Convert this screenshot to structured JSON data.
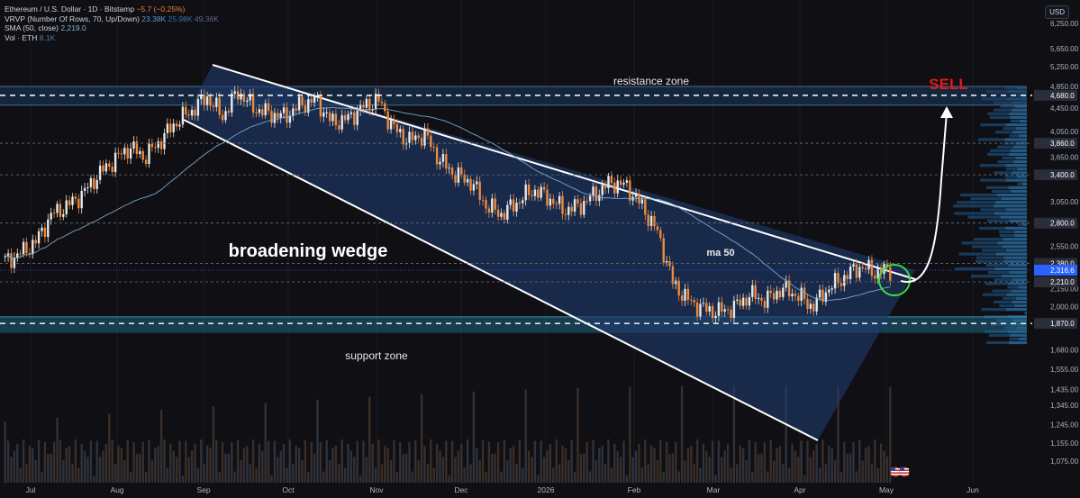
{
  "legend": {
    "symbol": "Ethereum / U.S. Dollar · 1D · Bitstamp",
    "change": "−5.7 (−0.25%)",
    "vrvp_label": "VRVP (Number Of Rows, 70, Up/Down)",
    "vrvp_v1": "23.38K",
    "vrvp_v2": "25.98K",
    "vrvp_v3": "49.36K",
    "sma_label": "SMA (50, close)",
    "sma_value": "2,219.0",
    "vol_label": "Vol · ETH",
    "vol_value": "8.1K"
  },
  "currency_button": "USD",
  "colors": {
    "background": "#0f0f14",
    "up_candle": "#e8e8e8",
    "down_candle": "#f08a3c",
    "sma": "#7fb2d6",
    "wedge_fill": "#1e3a6b",
    "zone_fill": "#1a3a5c",
    "sell": "#e21b1b",
    "circle": "#3ddc3d",
    "price_tag": "#2962ff"
  },
  "chart_data": {
    "type": "candlestick",
    "title": "Ethereum / U.S. Dollar · 1D · Bitstamp",
    "x_ticks": [
      "Jul",
      "Aug",
      "Sep",
      "Oct",
      "Nov",
      "Dec",
      "2026",
      "Feb",
      "Mar",
      "Apr",
      "May",
      "Jun"
    ],
    "y_scale": "log",
    "y_range": [
      1020,
      6700
    ],
    "y_ticks": [
      "6,250.00",
      "5,650.00",
      "5,250.00",
      "4,850.00",
      "4,450.00",
      "4,050.00",
      "3,650.00",
      "3,050.00",
      "2,550.00",
      "2,150.00",
      "2,000.00",
      "1,680.00",
      "1,555.00",
      "1,435.00",
      "1,345.00",
      "1,245.00",
      "1,155.00",
      "1,075.00"
    ],
    "y_tick_values": [
      6250,
      5650,
      5250,
      4850,
      4450,
      4050,
      3650,
      3050,
      2550,
      2150,
      2000,
      1680,
      1555,
      1435,
      1345,
      1245,
      1155,
      1075
    ],
    "level_labels": [
      "4,680.0",
      "3,860.0",
      "3,400.0",
      "2,800.0",
      "2,380.0",
      "2,210.0",
      "1,870.0"
    ],
    "level_values": [
      4680,
      3860,
      3400,
      2800,
      2380,
      2210,
      1870
    ],
    "current_price_label": "2,316.6",
    "current_price": 2316.6,
    "price_path": [
      [
        "Jul",
        2400
      ],
      [
        "Jul",
        2480
      ],
      [
        "Jul",
        2600
      ],
      [
        "Jul",
        2900
      ],
      [
        "Jul",
        3000
      ],
      [
        "Jul",
        3150
      ],
      [
        "Jul",
        3400
      ],
      [
        "Aug",
        3600
      ],
      [
        "Aug",
        3800
      ],
      [
        "Aug",
        3650
      ],
      [
        "Aug",
        3900
      ],
      [
        "Aug",
        4200
      ],
      [
        "Aug",
        4400
      ],
      [
        "Aug",
        4650
      ],
      [
        "Aug",
        4300
      ],
      [
        "Aug",
        4750
      ],
      [
        "Sep",
        4450
      ],
      [
        "Sep",
        4350
      ],
      [
        "Sep",
        4300
      ],
      [
        "Sep",
        4500
      ],
      [
        "Sep",
        4600
      ],
      [
        "Oct",
        4200
      ],
      [
        "Oct",
        4250
      ],
      [
        "Oct",
        4450
      ],
      [
        "Oct",
        4600
      ],
      [
        "Oct",
        4100
      ],
      [
        "Oct",
        3900
      ],
      [
        "Oct",
        4000
      ],
      [
        "Nov",
        3600
      ],
      [
        "Nov",
        3400
      ],
      [
        "Nov",
        3300
      ],
      [
        "Nov",
        3000
      ],
      [
        "Nov",
        2900
      ],
      [
        "Dec",
        3050
      ],
      [
        "Dec",
        3200
      ],
      [
        "Dec",
        3100
      ],
      [
        "Dec",
        2950
      ],
      [
        "Dec",
        3000
      ],
      [
        "2026",
        3150
      ],
      [
        "2026",
        3300
      ],
      [
        "2026",
        3250
      ],
      [
        "2026",
        3000
      ],
      [
        "Feb",
        2700
      ],
      [
        "Feb",
        2200
      ],
      [
        "Feb",
        2050
      ],
      [
        "Feb",
        1980
      ],
      [
        "Feb",
        1960
      ],
      [
        "Mar",
        2000
      ],
      [
        "Mar",
        2100
      ],
      [
        "Mar",
        2050
      ],
      [
        "Mar",
        2150
      ],
      [
        "Apr",
        2100
      ],
      [
        "Apr",
        2000
      ],
      [
        "Apr",
        2150
      ],
      [
        "Apr",
        2250
      ],
      [
        "Apr",
        2350
      ],
      [
        "May",
        2300
      ],
      [
        "May",
        2316.6
      ]
    ],
    "sma_label": "ma 50",
    "annotations": [
      "resistance zone",
      "support zone",
      "broadening wedge",
      "ma 50",
      "SELL"
    ],
    "resistance_zone": [
      4500,
      4850
    ],
    "support_zone": [
      1800,
      1920
    ]
  }
}
